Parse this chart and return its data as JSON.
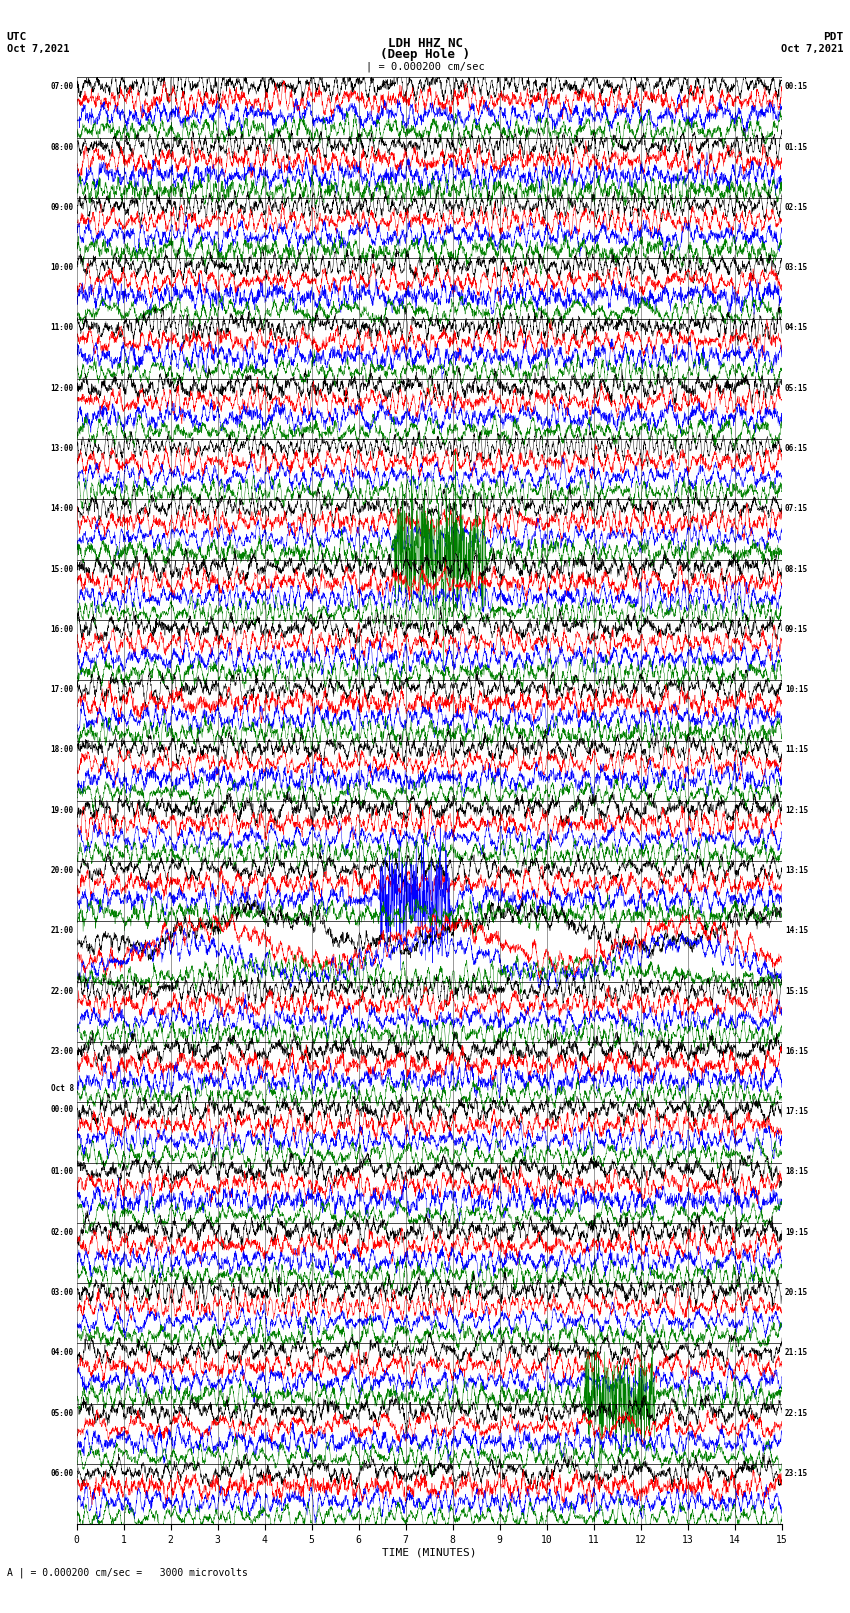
{
  "title_line1": "LDH HHZ NC",
  "title_line2": "(Deep Hole )",
  "scale_text": "| = 0.000200 cm/sec",
  "bottom_text": "A | = 0.000200 cm/sec =   3000 microvolts",
  "utc_label": "UTC",
  "pdt_label": "PDT",
  "date_left": "Oct 7,2021",
  "date_right": "Oct 7,2021",
  "xlabel": "TIME (MINUTES)",
  "left_times": [
    "07:00",
    "08:00",
    "09:00",
    "10:00",
    "11:00",
    "12:00",
    "13:00",
    "14:00",
    "15:00",
    "16:00",
    "17:00",
    "18:00",
    "19:00",
    "20:00",
    "21:00",
    "22:00",
    "23:00",
    "Oct 8\n00:00",
    "01:00",
    "02:00",
    "03:00",
    "04:00",
    "05:00",
    "06:00"
  ],
  "right_times": [
    "00:15",
    "01:15",
    "02:15",
    "03:15",
    "04:15",
    "05:15",
    "06:15",
    "07:15",
    "08:15",
    "09:15",
    "10:15",
    "11:15",
    "12:15",
    "13:15",
    "14:15",
    "15:15",
    "16:15",
    "17:15",
    "18:15",
    "19:15",
    "20:15",
    "21:15",
    "22:15",
    "23:15"
  ],
  "trace_colors": [
    "black",
    "red",
    "blue",
    "green"
  ],
  "num_groups": 24,
  "traces_per_group": 4,
  "xmin": 0,
  "xmax": 15,
  "xticks": [
    0,
    1,
    2,
    3,
    4,
    5,
    6,
    7,
    8,
    9,
    10,
    11,
    12,
    13,
    14,
    15
  ],
  "bg_color": "white",
  "fig_width": 8.5,
  "fig_height": 16.13,
  "dpi": 100,
  "seed": 42
}
